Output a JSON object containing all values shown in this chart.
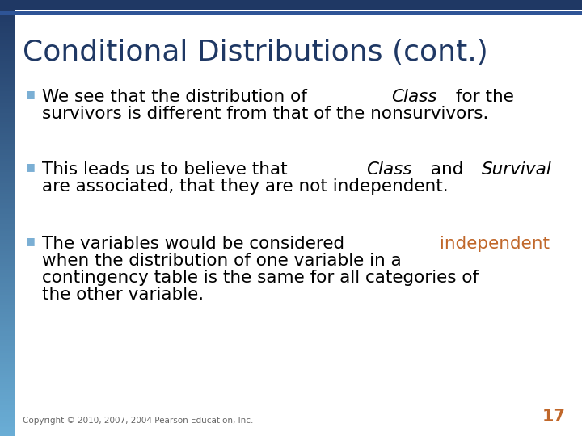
{
  "title": "Conditional Distributions (cont.)",
  "title_color": "#1F3864",
  "title_fontsize": 26,
  "background_color": "#FFFFFF",
  "top_bar_color": "#1F3864",
  "bullet_color": "#7BAFD4",
  "bullet_points": [
    {
      "lines": [
        [
          {
            "text": "We see that the distribution of ",
            "style": "normal",
            "color": "#000000"
          },
          {
            "text": "Class",
            "style": "italic",
            "color": "#000000"
          },
          {
            "text": " for the",
            "style": "normal",
            "color": "#000000"
          }
        ],
        [
          {
            "text": "survivors is different from that of the nonsurvivors.",
            "style": "normal",
            "color": "#000000"
          }
        ]
      ]
    },
    {
      "lines": [
        [
          {
            "text": "This leads us to believe that ",
            "style": "normal",
            "color": "#000000"
          },
          {
            "text": "Class",
            "style": "italic",
            "color": "#000000"
          },
          {
            "text": " and ",
            "style": "normal",
            "color": "#000000"
          },
          {
            "text": "Survival",
            "style": "italic",
            "color": "#000000"
          }
        ],
        [
          {
            "text": "are associated, that they are not independent.",
            "style": "normal",
            "color": "#000000"
          }
        ]
      ]
    },
    {
      "lines": [
        [
          {
            "text": "The variables would be considered ",
            "style": "normal",
            "color": "#000000"
          },
          {
            "text": "independent",
            "style": "normal",
            "color": "#C0672A"
          }
        ],
        [
          {
            "text": "when the distribution of one variable in a",
            "style": "normal",
            "color": "#000000"
          }
        ],
        [
          {
            "text": "contingency table is the same for all categories of",
            "style": "normal",
            "color": "#000000"
          }
        ],
        [
          {
            "text": "the other variable.",
            "style": "normal",
            "color": "#000000"
          }
        ]
      ]
    }
  ],
  "footer_text": "Copyright © 2010, 2007, 2004 Pearson Education, Inc.",
  "footer_color": "#666666",
  "footer_fontsize": 7.5,
  "page_number": "17",
  "page_number_color": "#C0672A",
  "body_fontsize": 15.5
}
